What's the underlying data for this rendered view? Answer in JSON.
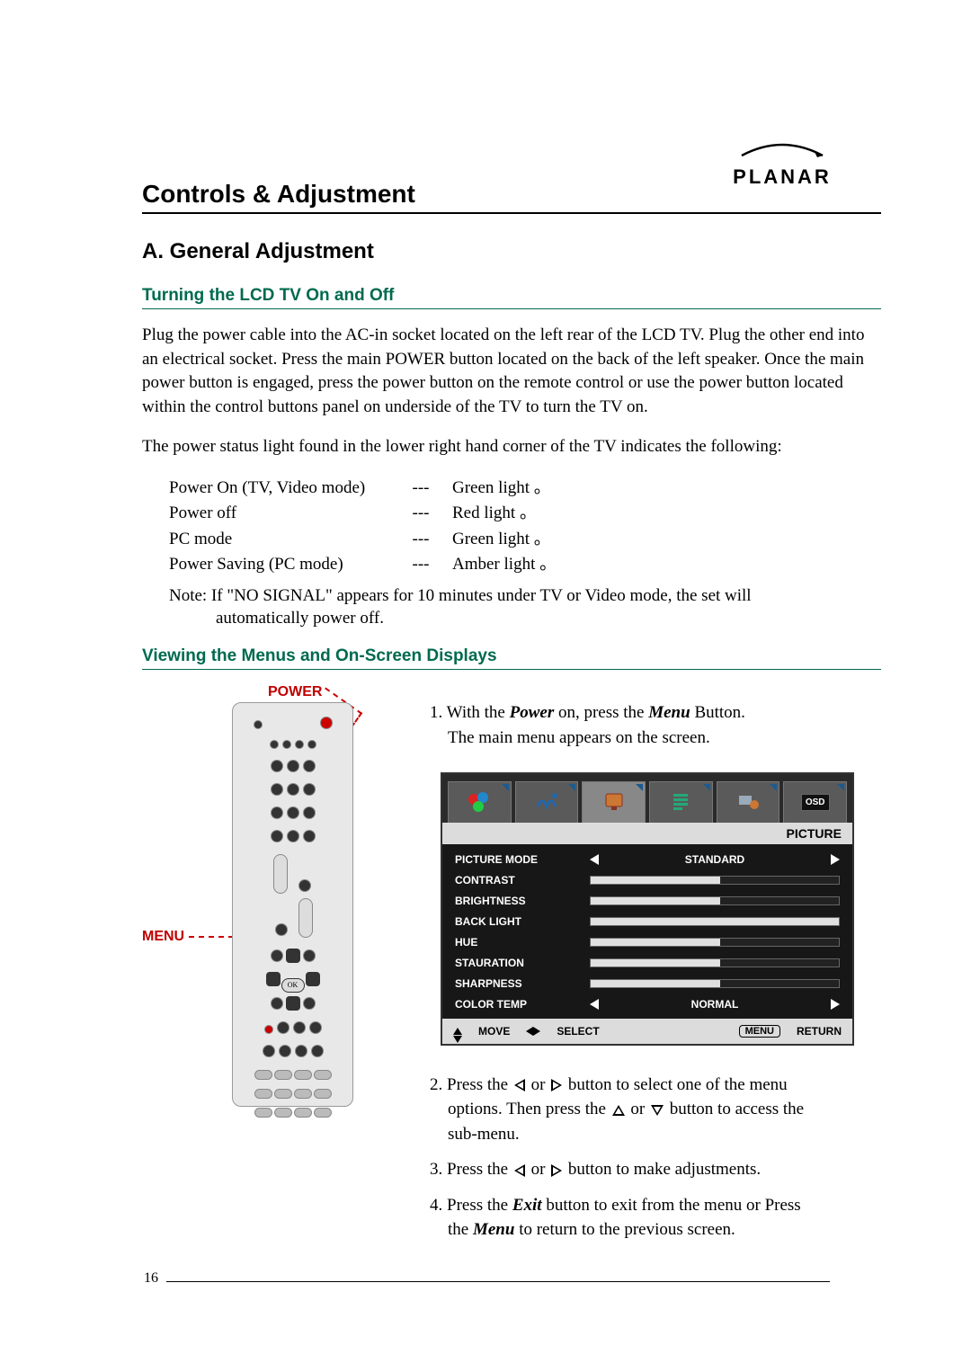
{
  "logo": {
    "brand": "PLANAR"
  },
  "headings": {
    "h1": "Controls & Adjustment",
    "h2": "A. General Adjustment",
    "h3a": "Turning the LCD TV On and Off",
    "h3b": "Viewing the Menus and On-Screen Displays"
  },
  "paragraphs": {
    "p1": "Plug the power cable into the AC-in socket located on the left rear of the LCD TV. Plug the other end into an electrical socket. Press the main POWER button located on the back of the left speaker. Once the main power button is engaged, press the power button on the remote control or use the power button located within the control buttons panel on underside of the TV to turn the TV on.",
    "p2": "The power status light found in the lower right hand corner of the TV indicates the following:"
  },
  "status_rows": [
    {
      "label": "Power On (TV, Video mode)",
      "sep": "---",
      "value": "Green light 。"
    },
    {
      "label": "Power off",
      "sep": "---",
      "value": "Red light 。"
    },
    {
      "label": "PC mode",
      "sep": "---",
      "value": " Green light 。"
    },
    {
      "label": "Power Saving (PC mode)",
      "sep": "---",
      "value": "Amber light 。"
    }
  ],
  "note": {
    "line1": "Note: If \"NO SIGNAL\" appears for 10 minutes under TV or Video mode, the set will",
    "line2": "automatically power off."
  },
  "remote_labels": {
    "power": "POWER",
    "menu": "MENU"
  },
  "steps": {
    "s1a": "1. With the ",
    "s1b": "Power",
    "s1c": " on, press the ",
    "s1d": "Menu",
    "s1e": " Button.",
    "s1f": "The main menu appears on the screen.",
    "s2a": "2. Press the ",
    "s2b": " or ",
    "s2c": " button to select one of the menu",
    "s2d": "options. Then press the ",
    "s2e": " or ",
    "s2f": " button to access the",
    "s2g": "sub-menu.",
    "s3a": "3. Press the ",
    "s3b": " or ",
    "s3c": " button to make adjustments.",
    "s4a": "4. Press the ",
    "s4b": "Exit",
    "s4c": " button to exit from the menu or Press",
    "s4d": "the ",
    "s4e": "Menu",
    "s4f": " to return to the previous screen."
  },
  "osd": {
    "category": "PICTURE",
    "colors": {
      "panel_bg": "#171717",
      "tab_bg": "#5a5a5a",
      "tab_active_bg": "#888888",
      "header_bg": "#dcdcdc",
      "text_white": "#ffffff",
      "text_black": "#000000",
      "bar_bg": "#222222",
      "bar_fill": "#e0e0e0"
    },
    "rows": [
      {
        "label": "PICTURE MODE",
        "type": "select",
        "value": "STANDARD"
      },
      {
        "label": "CONTRAST",
        "type": "bar",
        "fill": 52
      },
      {
        "label": "BRIGHTNESS",
        "type": "bar",
        "fill": 52
      },
      {
        "label": "BACK LIGHT",
        "type": "bar",
        "fill": 100
      },
      {
        "label": "HUE",
        "type": "bar",
        "fill": 52
      },
      {
        "label": "STAURATION",
        "type": "bar",
        "fill": 52
      },
      {
        "label": "SHARPNESS",
        "type": "bar",
        "fill": 52
      },
      {
        "label": "COLOR TEMP",
        "type": "select",
        "value": "NORMAL"
      }
    ],
    "footer": {
      "move": "MOVE",
      "select": "SELECT",
      "menu": "MENU",
      "ret": "RETURN"
    },
    "osd_badge": "OSD"
  },
  "page_number": "16"
}
